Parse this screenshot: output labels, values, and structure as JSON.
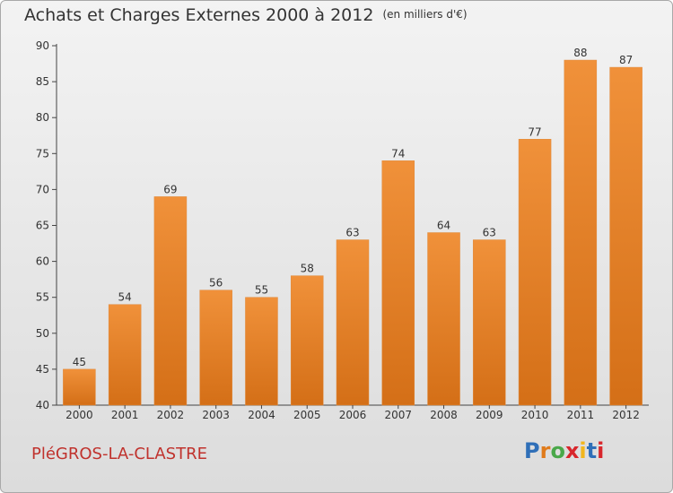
{
  "title": "Achats et Charges Externes 2000 à 2012",
  "unit": "(en milliers d'€)",
  "commune": "PléGROS-LA-CLASTRE",
  "logo": {
    "text": "Proxiti",
    "colors": [
      "#2f6fb8",
      "#e07b1b",
      "#4aa84a",
      "#d8262c",
      "#f2b61c",
      "#2f6fb8",
      "#d8262c"
    ]
  },
  "colors": {
    "bar": "#f0913a",
    "bar_dark": "#d46f17",
    "text": "#333333",
    "commune": "#c0322d"
  },
  "chart_data": {
    "type": "bar",
    "categories": [
      "2000",
      "2001",
      "2002",
      "2003",
      "2004",
      "2005",
      "2006",
      "2007",
      "2008",
      "2009",
      "2010",
      "2011",
      "2012"
    ],
    "values": [
      45,
      54,
      69,
      56,
      55,
      58,
      63,
      74,
      64,
      63,
      77,
      88,
      87
    ],
    "ylim": [
      40,
      90
    ],
    "yticks": [
      40,
      45,
      50,
      55,
      60,
      65,
      70,
      75,
      80,
      85,
      90
    ],
    "grid": false
  }
}
